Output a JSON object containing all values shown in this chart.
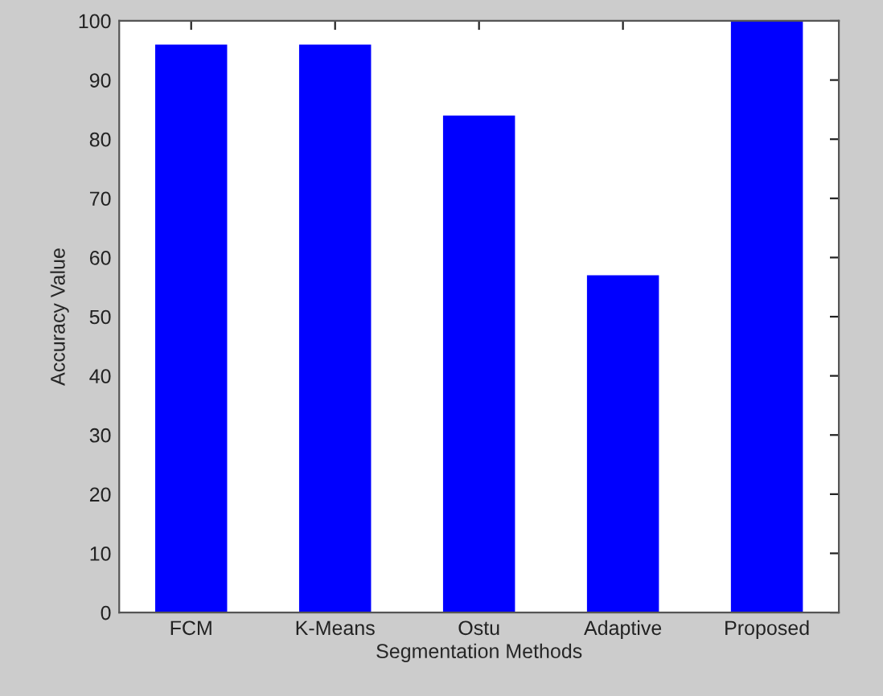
{
  "chart_data": {
    "type": "bar",
    "xlabel": "Segmentation Methods",
    "ylabel": "Accuracy Value",
    "categories": [
      "FCM",
      "K-Means",
      "Ostu",
      "Adaptive",
      "Proposed"
    ],
    "values": [
      96,
      96,
      84,
      57,
      100
    ],
    "color": "#0000ff",
    "ylim": [
      0,
      100
    ],
    "yticks": [
      0,
      10,
      20,
      30,
      40,
      50,
      60,
      70,
      80,
      90,
      100
    ],
    "grid": false
  }
}
